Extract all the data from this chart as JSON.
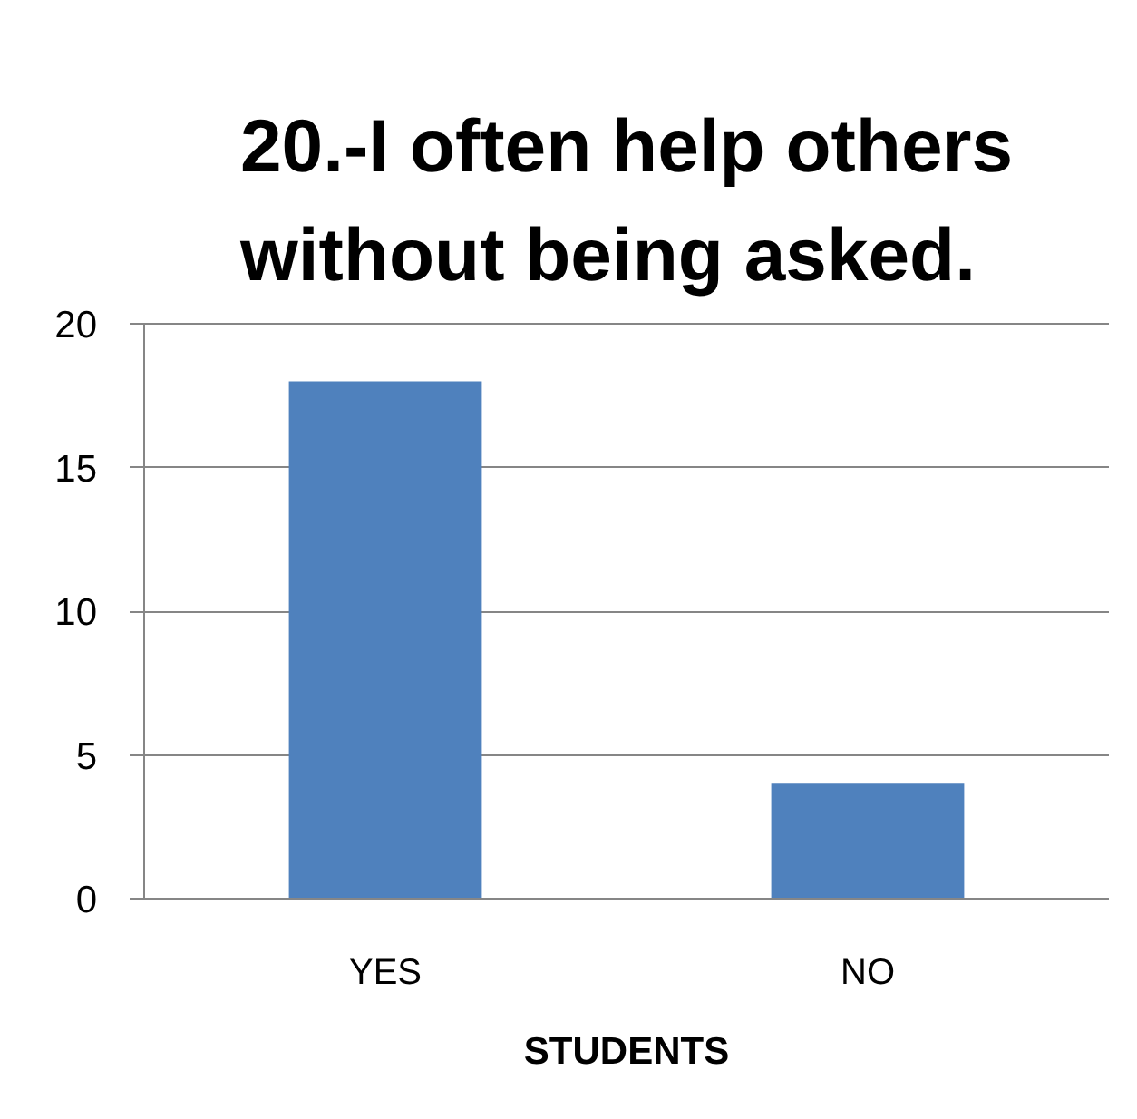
{
  "chart_data": {
    "type": "bar",
    "title": "20.-I often help others\nwithout being asked.",
    "xlabel": "STUDENTS",
    "categories": [
      "YES",
      "NO"
    ],
    "values": [
      18,
      4
    ],
    "color": "#4f81bd",
    "ylim": [
      0,
      20
    ],
    "yticks": [
      0,
      5,
      10,
      15,
      20
    ],
    "grid": "y"
  }
}
